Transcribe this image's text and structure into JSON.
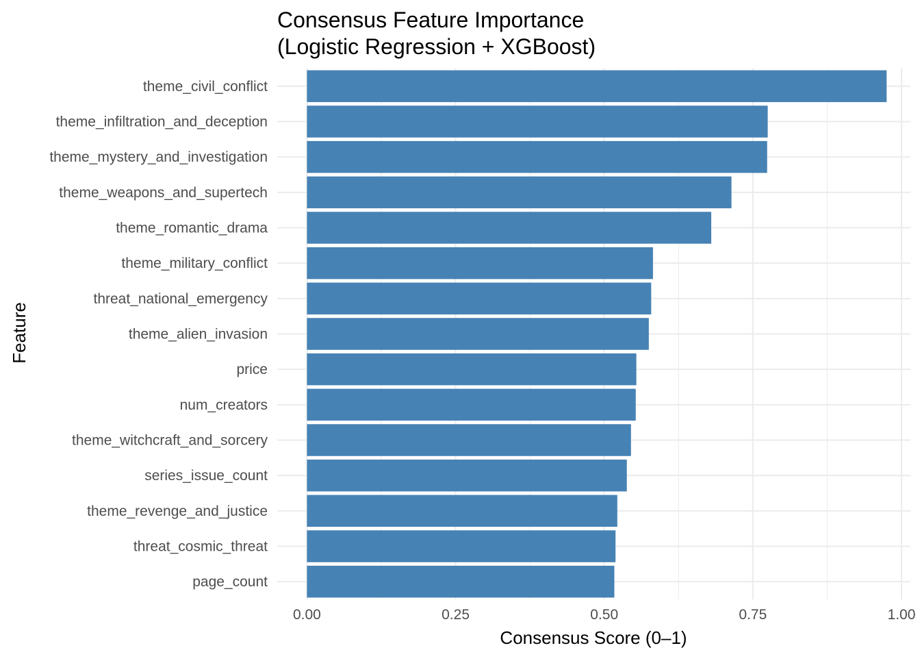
{
  "chart_data": {
    "type": "bar",
    "orientation": "horizontal",
    "title": [
      "Consensus Feature Importance",
      "(Logistic Regression + XGBoost)"
    ],
    "xlabel": "Consensus Score (0–1)",
    "ylabel": "Feature",
    "categories": [
      "theme_civil_conflict",
      "theme_infiltration_and_deception",
      "theme_mystery_and_investigation",
      "theme_weapons_and_supertech",
      "theme_romantic_drama",
      "theme_military_conflict",
      "threat_national_emergency",
      "theme_alien_invasion",
      "price",
      "num_creators",
      "theme_witchcraft_and_sorcery",
      "series_issue_count",
      "theme_revenge_and_justice",
      "threat_cosmic_threat",
      "page_count"
    ],
    "values": [
      0.975,
      0.775,
      0.774,
      0.714,
      0.68,
      0.582,
      0.579,
      0.575,
      0.554,
      0.553,
      0.545,
      0.538,
      0.522,
      0.519,
      0.517
    ],
    "xlim": [
      -0.05,
      1.015
    ],
    "x_ticks": [
      "0.00",
      "0.25",
      "0.50",
      "0.75",
      "1.00"
    ],
    "x_tick_values": [
      0,
      0.25,
      0.5,
      0.75,
      1.0
    ],
    "x_minor_tick_values": [
      0.125,
      0.375,
      0.625,
      0.875
    ],
    "grid": true,
    "bar_color": "#4682B4",
    "grid_color": "#EBEBEB",
    "legend": "none"
  }
}
